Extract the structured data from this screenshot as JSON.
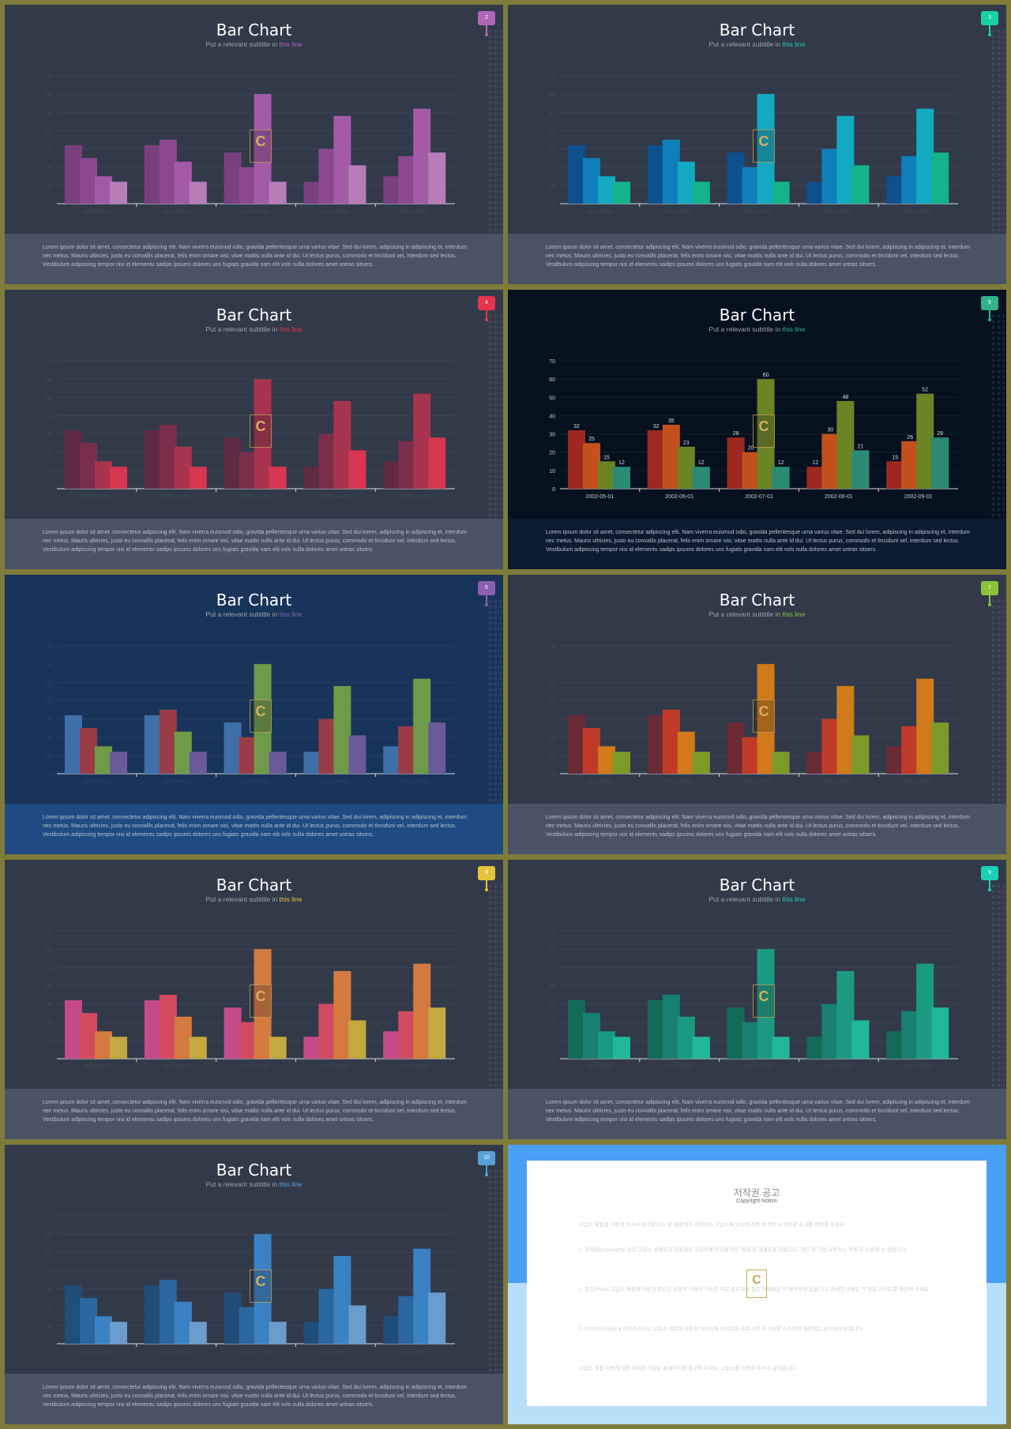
{
  "slides": [
    {
      "title": "Bar Chart",
      "subtitle_prefix": "Put a relevant subtitle in ",
      "subtitle_highlight": "this line",
      "badge": "2",
      "bg": "#323a4a",
      "footer_bg": "#4a5365",
      "accent": "#b066b9",
      "axis_label_color": "#434b5a",
      "data_labels": false,
      "colors": [
        "#7a3f7d",
        "#8b488f",
        "#a55aa8",
        "#b87cb8"
      ],
      "labels": [
        "",
        "",
        "",
        ""
      ],
      "footer_text": "Lorem ipsum dolor sit amet, consectetur adipiscing elit. Nam viverra euismod odio, gravida pellentesque urna varius vitae. Sed dui lorem, adipiscing in adipiscing et, interdum nec metus. Mauris ultricies, justo eu convallis placerat, felis enim ornare nisi, vitae mattis nulla ante id dui. Ut lectus purus, commodo et tincidunt vel, interdum sed lectus. Vestibulum adipiscing tempor nisi id elementu sadips ipsums dolores uns fugiats gravida nam elit vols nulla dolores amet untras sitsers."
    },
    {
      "title": "Bar Chart",
      "subtitle_prefix": "Put a relevant subtitle in ",
      "subtitle_highlight": "this line",
      "badge": "3",
      "bg": "#323a4a",
      "footer_bg": "#4a5365",
      "accent": "#1ad1a5",
      "axis_label_color": "#434b5a",
      "data_labels": false,
      "colors": [
        "#0e4f8e",
        "#0e7fba",
        "#13a9c2",
        "#13b38c"
      ],
      "labels": [
        "",
        "",
        "",
        ""
      ],
      "footer_text": "Lorem ipsum dolor sit amet, consectetur adipiscing elit. Nam viverra euismod odio, gravida pellentesque urna varius vitae. Sed dui lorem, adipiscing in adipiscing et, interdum nec metus. Mauris ultricies, justo eu convallis placerat, felis enim ornare nisi, vitae mattis nulla ante id dui. Ut lectus purus, commodo et tincidunt vel, interdum sed lectus. Vestibulum adipiscing tempor nisi id elementu sadips ipsums dolores uns fugiats gravida nam elit vols nulla dolores amet untras sitsers."
    },
    {
      "title": "Bar Chart",
      "subtitle_prefix": "Put a relevant subtitle in ",
      "subtitle_highlight": "this line",
      "badge": "4",
      "bg": "#323a4a",
      "footer_bg": "#4a5365",
      "accent": "#e8334f",
      "axis_label_color": "#434b5a",
      "data_labels": false,
      "colors": [
        "#5e2a44",
        "#7a2e4b",
        "#a8334f",
        "#d73550"
      ],
      "labels": [
        "",
        "",
        "",
        ""
      ],
      "footer_text": "Lorem ipsum dolor sit amet, consectetur adipiscing elit. Nam viverra euismod odio, gravida pellentesque urna varius vitae. Sed dui lorem, adipiscing in adipiscing et, interdum nec metus. Mauris ultricies, justo eu convallis placerat, felis enim ornare nisi, vitae mattis nulla ante id dui. Ut lectus purus, commodo et tincidunt vel, interdum sed lectus. Vestibulum adipiscing tempor nisi id elementu sadips ipsums dolores uns fugiats gravida nam elit vols nulla dolores amet untras sitsers."
    },
    {
      "title": "Bar Chart",
      "subtitle_prefix": "Put a relevant subtitle in ",
      "subtitle_highlight": "this line",
      "badge": "5",
      "bg": "#06111f",
      "footer_bg": "#0c1c30",
      "accent": "#2fb38d",
      "axis_label_color": "#c8cdd5",
      "data_labels": true,
      "colors": [
        "#9e2820",
        "#c4501e",
        "#6b8425",
        "#2b8a74"
      ],
      "labels": [
        "",
        "",
        "",
        ""
      ],
      "footer_text": "Lorem ipsum dolor sit amet, consectetur adipiscing elit. Nam viverra euismod odio, gravida pellentesque urna varius vitae. Sed dui lorem, adipiscing in adipiscing et, interdum nec metus. Mauris ultricies, justo eu convallis placerat, felis enim ornare nisi, vitae mattis nulla ante id dui. Ut lectus purus, commodo et tincidunt vel, interdum sed lectus. Vestibulum adipiscing tempor nisi id elementu sadips ipsums dolores uns fugiats gravida nam elit vols nulla dolores amet untras sitsers."
    },
    {
      "title": "Bar Chart",
      "subtitle_prefix": "Put a relevant subtitle in ",
      "subtitle_highlight": "this line",
      "badge": "6",
      "bg": "#19345a",
      "footer_bg": "#1d4b82",
      "accent": "#8a5fb0",
      "axis_label_color": "#2b4670",
      "data_labels": false,
      "colors": [
        "#3f6fa8",
        "#9a3c46",
        "#6f9a48",
        "#6a5a9a"
      ],
      "labels": [
        "",
        "",
        "",
        ""
      ],
      "footer_text": "Lorem ipsum dolor sit amet, consectetur adipiscing elit. Nam viverra euismod odio, gravida pellentesque urna varius vitae. Sed dui lorem, adipiscing in adipiscing et, interdum nec metus. Mauris ultricies, justo eu convallis placerat, felis enim ornare nisi, vitae mattis nulla ante id dui. Ut lectus purus, commodo et tincidunt vel, interdum sed lectus. Vestibulum adipiscing tempor nisi id elementu sadips ipsums dolores uns fugiats gravida nam elit vols nulla dolores amet untras sitsers."
    },
    {
      "title": "Bar Chart",
      "subtitle_prefix": "Put a relevant subtitle in ",
      "subtitle_highlight": "this line",
      "badge": "7",
      "bg": "#323a4a",
      "footer_bg": "#4a5365",
      "accent": "#8bc33a",
      "axis_label_color": "#434b5a",
      "data_labels": false,
      "colors": [
        "#6a2a36",
        "#c03a2a",
        "#d07a1a",
        "#7a9a2a"
      ],
      "labels": [
        "",
        "",
        "",
        ""
      ],
      "footer_text": "Lorem ipsum dolor sit amet, consectetur adipiscing elit. Nam viverra euismod odio, gravida pellentesque urna varius vitae. Sed dui lorem, adipiscing in adipiscing et, interdum nec metus. Mauris ultricies, justo eu convallis placerat, felis enim ornare nisi, vitae mattis nulla ante id dui. Ut lectus purus, commodo et tincidunt vel, interdum sed lectus. Vestibulum adipiscing tempor nisi id elementu sadips ipsums dolores uns fugiats gravida nam elit vols nulla dolores amet untras sitsers."
    },
    {
      "title": "Bar Chart",
      "subtitle_prefix": "Put a relevant subtitle in ",
      "subtitle_highlight": "this line",
      "badge": "8",
      "bg": "#323a4a",
      "footer_bg": "#4a5365",
      "accent": "#e6c43a",
      "axis_label_color": "#434b5a",
      "data_labels": false,
      "colors": [
        "#c44a8a",
        "#d24a60",
        "#d47a40",
        "#c4a840"
      ],
      "labels": [
        "",
        "",
        "",
        ""
      ],
      "footer_text": "Lorem ipsum dolor sit amet, consectetur adipiscing elit. Nam viverra euismod odio, gravida pellentesque urna varius vitae. Sed dui lorem, adipiscing in adipiscing et, interdum nec metus. Mauris ultricies, justo eu convallis placerat, felis enim ornare nisi, vitae mattis nulla ante id dui. Ut lectus purus, commodo et tincidunt vel, interdum sed lectus. Vestibulum adipiscing tempor nisi id elementu sadips ipsums dolores uns fugiats gravida nam elit vols nulla dolores amet untras sitsers."
    },
    {
      "title": "Bar Chart",
      "subtitle_prefix": "Put a relevant subtitle in ",
      "subtitle_highlight": "this line",
      "badge": "9",
      "bg": "#323a4a",
      "footer_bg": "#4a5365",
      "accent": "#1ad1b5",
      "axis_label_color": "#434b5a",
      "data_labels": false,
      "colors": [
        "#146a58",
        "#178070",
        "#1b9a82",
        "#20b898"
      ],
      "labels": [
        "",
        "",
        "",
        ""
      ],
      "footer_text": "Lorem ipsum dolor sit amet, consectetur adipiscing elit. Nam viverra euismod odio, gravida pellentesque urna varius vitae. Sed dui lorem, adipiscing in adipiscing et, interdum nec metus. Mauris ultricies, justo eu convallis placerat, felis enim ornare nisi, vitae mattis nulla ante id dui. Ut lectus purus, commodo et tincidunt vel, interdum sed lectus. Vestibulum adipiscing tempor nisi id elementu sadips ipsums dolores uns fugiats gravida nam elit vols nulla dolores amet untras sitsers."
    },
    {
      "title": "Bar Chart",
      "subtitle_prefix": "Put a relevant subtitle in ",
      "subtitle_highlight": "this line",
      "badge": "10",
      "bg": "#323a4a",
      "footer_bg": "#4a5365",
      "accent": "#5aa0d8",
      "axis_label_color": "#434b5a",
      "data_labels": false,
      "colors": [
        "#1f4e7a",
        "#2a66a0",
        "#3a82c4",
        "#6a9ccc"
      ],
      "labels": [
        "",
        "",
        "",
        ""
      ],
      "footer_text": "Lorem ipsum dolor sit amet, consectetur adipiscing elit. Nam viverra euismod odio, gravida pellentesque urna varius vitae. Sed dui lorem, adipiscing in adipiscing et, interdum nec metus. Mauris ultricies, justo eu convallis placerat, felis enim ornare nisi, vitae mattis nulla ante id dui. Ut lectus purus, commodo et tincidunt vel, interdum sed lectus. Vestibulum adipiscing tempor nisi id elementu sadips ipsums dolores uns fugiats gravida nam elit vols nulla dolores amet untras sitsers."
    }
  ],
  "chart_data": {
    "type": "bar",
    "categories": [
      "2002-05-01",
      "2002-06-01",
      "2002-07-01",
      "2002-08-01",
      "2002-09-01"
    ],
    "series": [
      {
        "values": [
          32,
          32,
          28,
          12,
          15
        ]
      },
      {
        "values": [
          25,
          35,
          20,
          30,
          26
        ]
      },
      {
        "values": [
          15,
          23,
          60,
          48,
          52
        ]
      },
      {
        "values": [
          12,
          12,
          12,
          21,
          28
        ]
      }
    ],
    "ylim": [
      0,
      70
    ],
    "yticks": [
      0,
      10,
      20,
      30,
      40,
      50,
      60,
      70
    ],
    "grid": true
  },
  "copyright": {
    "title": "저작권 공고",
    "subtitle": "Copyright Notice",
    "paragraphs": [
      "고맙소 제품을 이용해 주셔서 감사합니다. 본 템플릿의 저작권은 고맙소에 있으며 사용 전 반드시 저작권 공고를 확인해 주세요.",
      "1. 저작권(Copyright): 모든 고맙소 콘텐츠의 저작권은 고맙소에 있으며 무단 복제 및 재배포를 금합니다. 개인 및 기업 사용자는 구매 후 사용할 수 있습니다.",
      "2. 폰트(Font): 고맙소 제품에 사용된 폰트는 상업적 사용이 가능한 무료 폰트이며 폰트 저작권은 각 제작사에 있습니다. 자세한 내용은 각 폰트 사이트를 확인해 주세요.",
      "3. 이미지(Image) & 아이콘(Icon): 고맙소 제품에 사용된 이미지와 아이콘은 무료 사용이 가능한 소스이며 재판매는 금지되어 있습니다.",
      "고맙소 제품 이용에 대한 자세한 사항은 홈페이지를 참고해 주세요. 고맙소를 이용해 주셔서 감사합니다."
    ]
  }
}
